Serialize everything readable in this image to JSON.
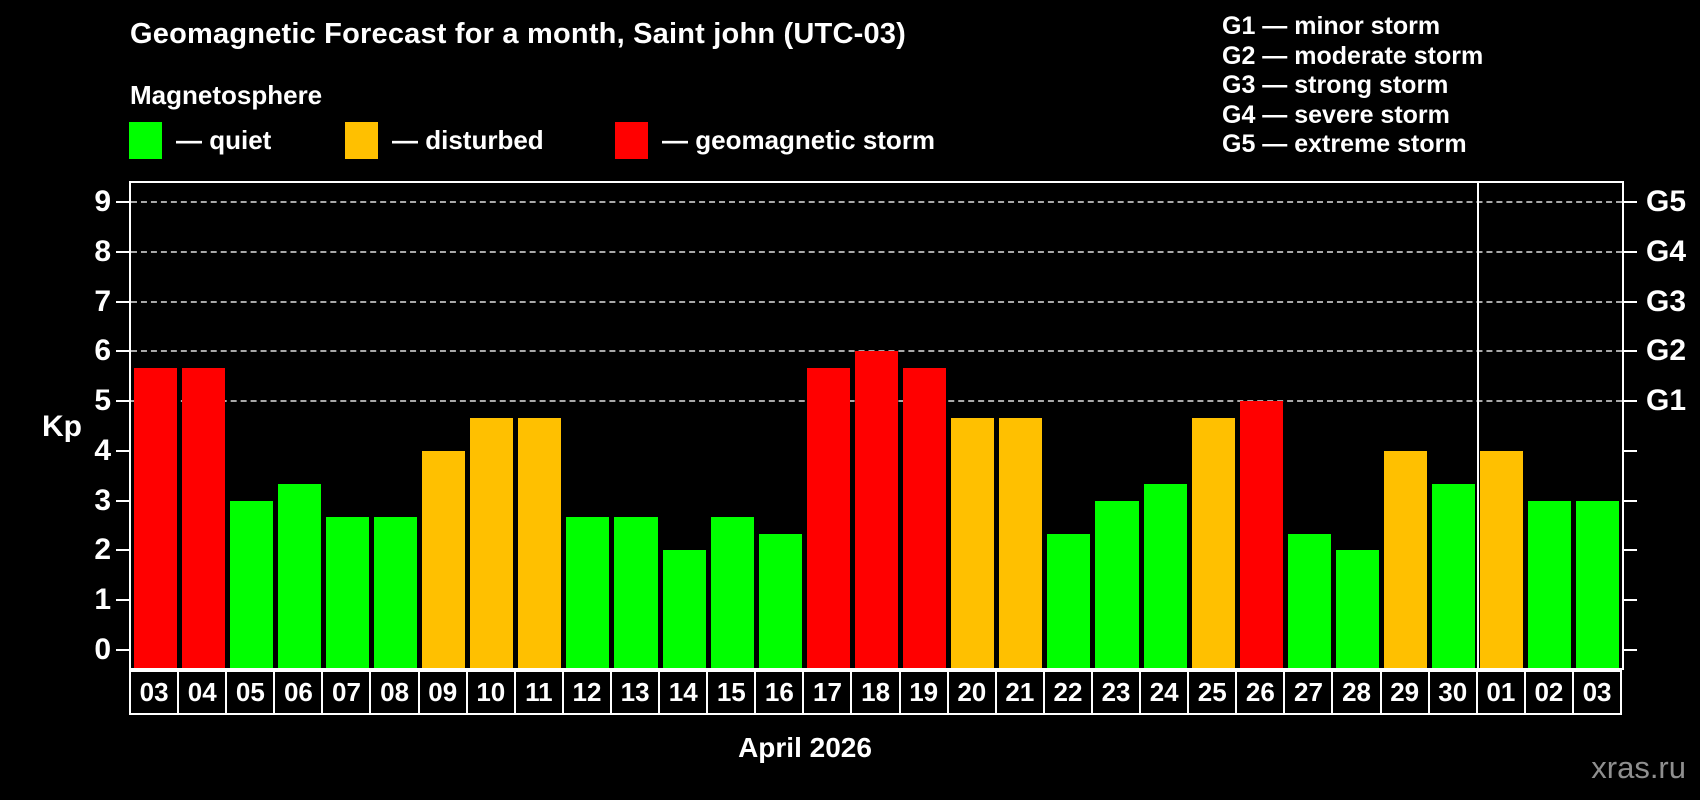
{
  "header": {
    "title": "Geomagnetic Forecast for a month, Saint john (UTC-03)",
    "subtitle": "Magnetosphere"
  },
  "legend": [
    {
      "name": "quiet",
      "label": "— quiet",
      "color": "#00ff00"
    },
    {
      "name": "disturbed",
      "label": "— disturbed",
      "color": "#ffc000"
    },
    {
      "name": "storm",
      "label": "— geomagnetic storm",
      "color": "#ff0000"
    }
  ],
  "g_scale_legend": [
    "G1 — minor storm",
    "G2 — moderate storm",
    "G3 — strong storm",
    "G4 — severe storm",
    "G5 — extreme storm"
  ],
  "chart_data": {
    "type": "bar",
    "title": "Geomagnetic Forecast for a month, Saint john (UTC-03)",
    "ylabel": "Kp",
    "xlabel": "April 2026",
    "ylim": [
      0,
      9
    ],
    "yticks": [
      0,
      1,
      2,
      3,
      4,
      5,
      6,
      7,
      8,
      9
    ],
    "gridlines_at": [
      5,
      6,
      7,
      8,
      9
    ],
    "grid": true,
    "legend_position": "top",
    "right_axis": [
      {
        "kp": 5,
        "label": "G1"
      },
      {
        "kp": 6,
        "label": "G2"
      },
      {
        "kp": 7,
        "label": "G3"
      },
      {
        "kp": 8,
        "label": "G4"
      },
      {
        "kp": 9,
        "label": "G5"
      }
    ],
    "categories": [
      "03",
      "04",
      "05",
      "06",
      "07",
      "08",
      "09",
      "10",
      "11",
      "12",
      "13",
      "14",
      "15",
      "16",
      "17",
      "18",
      "19",
      "20",
      "21",
      "22",
      "23",
      "24",
      "25",
      "26",
      "27",
      "28",
      "29",
      "30",
      "01",
      "02",
      "03"
    ],
    "values": [
      5.67,
      5.67,
      3.0,
      3.33,
      2.67,
      2.67,
      4.0,
      4.67,
      4.67,
      2.67,
      2.67,
      2.0,
      2.67,
      2.33,
      5.67,
      6.0,
      5.67,
      4.67,
      4.67,
      2.33,
      3.0,
      3.33,
      4.67,
      5.0,
      2.33,
      2.0,
      4.0,
      3.33,
      4.0,
      3.0,
      3.0
    ],
    "statuses": [
      "storm",
      "storm",
      "quiet",
      "quiet",
      "quiet",
      "quiet",
      "disturbed",
      "disturbed",
      "disturbed",
      "quiet",
      "quiet",
      "quiet",
      "quiet",
      "quiet",
      "storm",
      "storm",
      "storm",
      "disturbed",
      "disturbed",
      "quiet",
      "quiet",
      "quiet",
      "disturbed",
      "storm",
      "quiet",
      "quiet",
      "disturbed",
      "quiet",
      "disturbed",
      "quiet",
      "quiet"
    ],
    "colors": {
      "quiet": "#00ff00",
      "disturbed": "#ffc000",
      "storm": "#ff0000"
    },
    "month_divider_after_index": 27
  },
  "watermark": "xras.ru"
}
